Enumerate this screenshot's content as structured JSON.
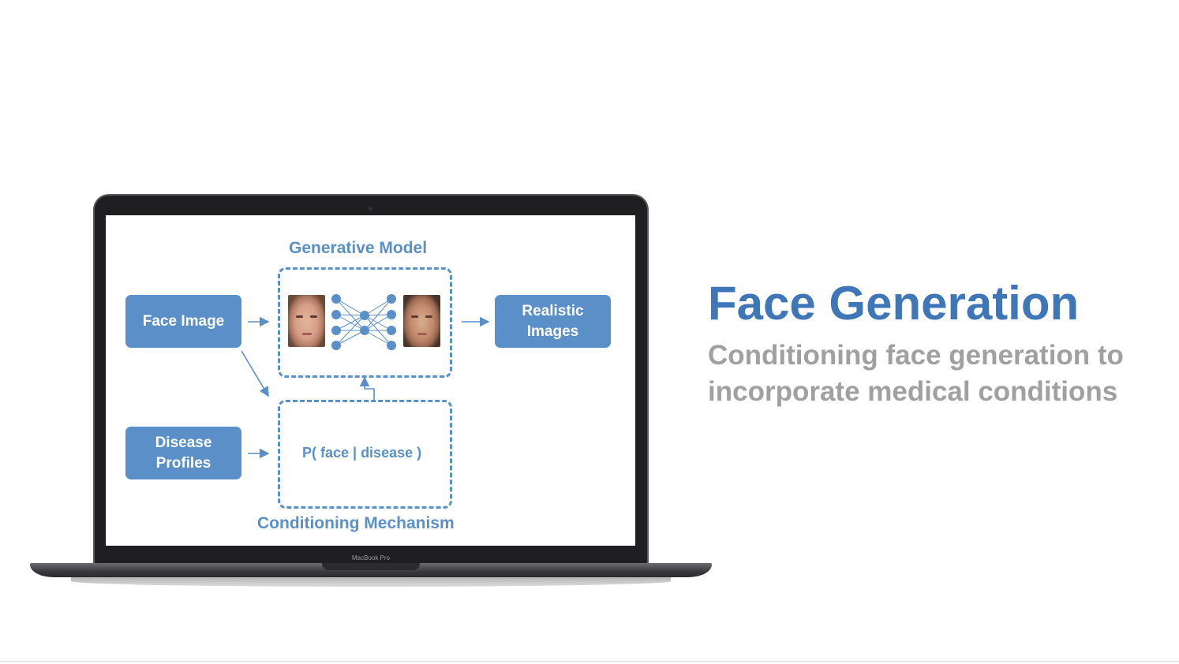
{
  "slide": {
    "title": "Face Generation",
    "subtitle_line1": "Conditioning face generation to",
    "subtitle_line2": "incorporate medical conditions"
  },
  "laptop": {
    "brand": "MacBook Pro"
  },
  "diagram": {
    "generative_model_label": "Generative Model",
    "conditioning_label": "Conditioning Mechanism",
    "face_image_box": "Face Image",
    "disease_profiles_box_line1": "Disease",
    "disease_profiles_box_line2": "Profiles",
    "realistic_images_box_line1": "Realistic",
    "realistic_images_box_line2": "Images",
    "probability": "P( face | disease )"
  },
  "colors": {
    "accent": "#5a8fc7",
    "title": "#3f76b8",
    "subtitle": "#a0a0a0"
  }
}
